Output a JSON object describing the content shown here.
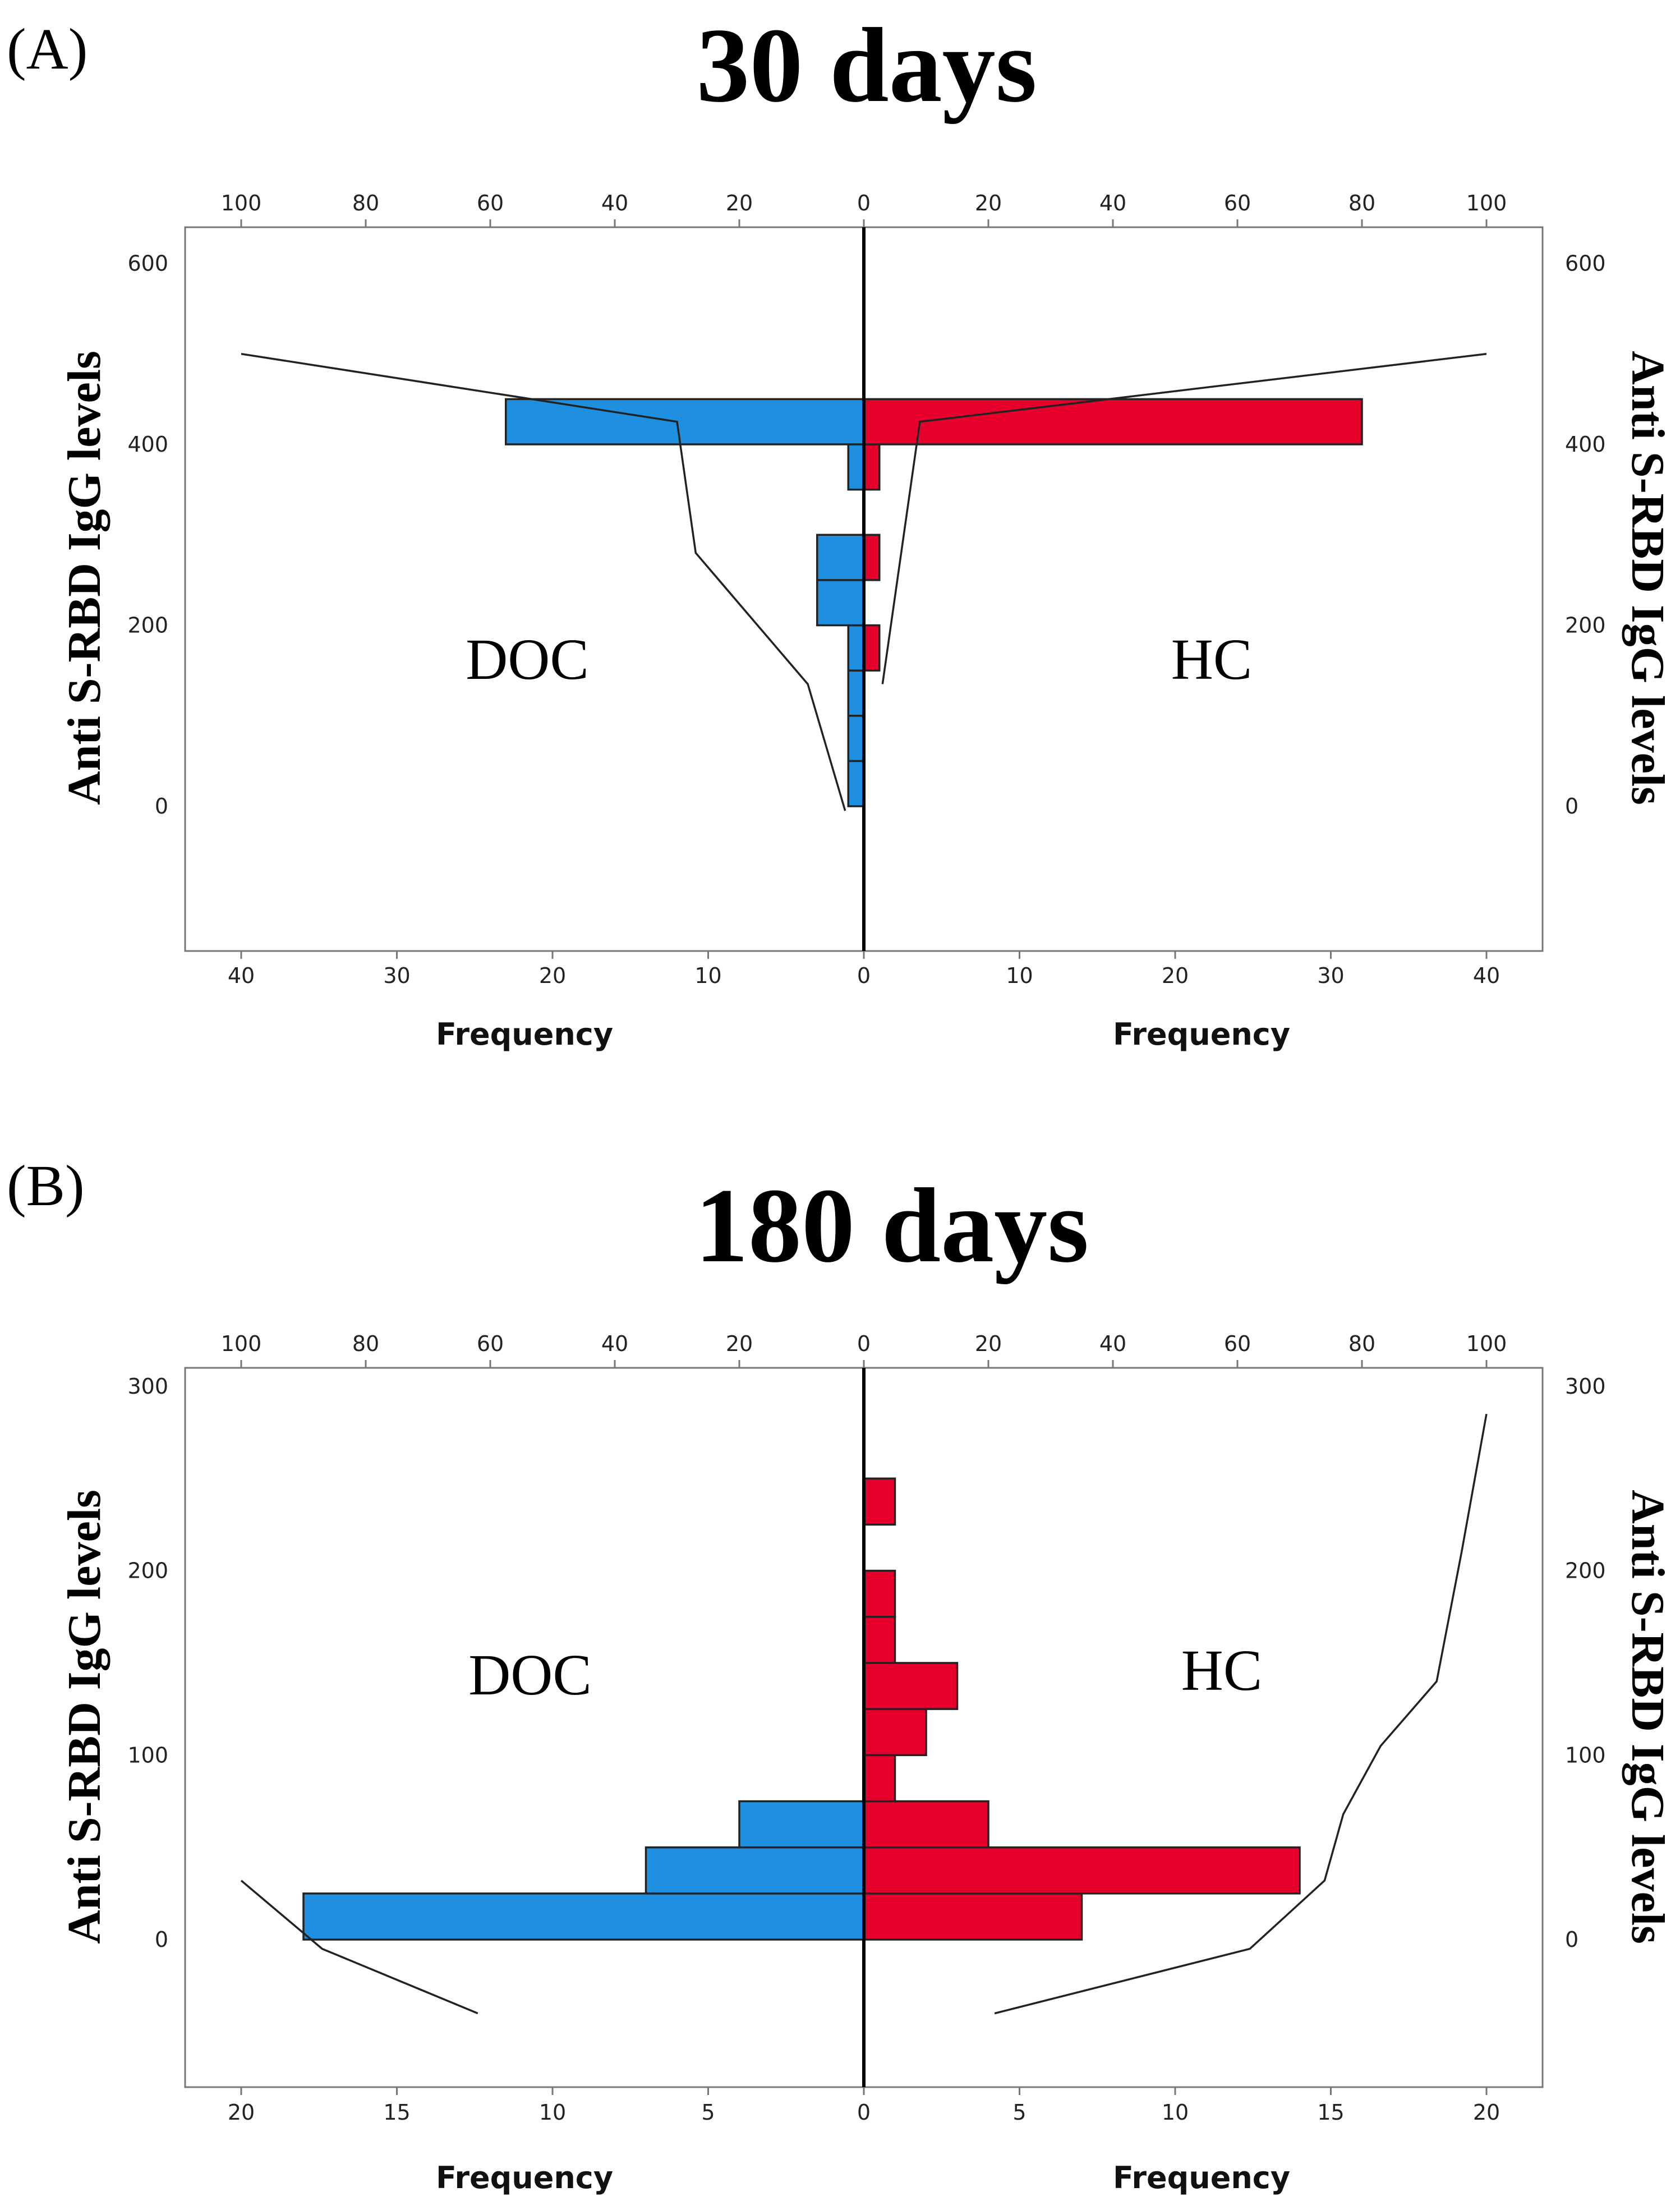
{
  "colors": {
    "DOC": "#1f8fe0",
    "HC": "#e8002d"
  },
  "chart_data": [
    {
      "type": "bar",
      "panel_label": "(A)",
      "title": "30 days",
      "subtype": "back-to-back histogram with cumulative percent curve",
      "ylabel_left": "Anti S-RBD IgG levels",
      "ylabel_right": "Anti S-RBD IgG levels",
      "xlabel_left": "Frequency",
      "xlabel_right": "Frequency",
      "ylim": [
        -160,
        640
      ],
      "y_ticks": [
        0,
        200,
        400,
        600
      ],
      "freq_max": 40,
      "freq_ticks": [
        40,
        30,
        20,
        10,
        0,
        10,
        20,
        30,
        40
      ],
      "percent_ticks": [
        100,
        80,
        60,
        40,
        20,
        0,
        20,
        40,
        60,
        80,
        100
      ],
      "group_labels": {
        "left": "DOC",
        "right": "HC"
      },
      "bin_width": 50,
      "series": [
        {
          "name": "DOC",
          "side": "left",
          "bins": [
            {
              "from": 0,
              "to": 50,
              "frequency": 1
            },
            {
              "from": 50,
              "to": 100,
              "frequency": 1
            },
            {
              "from": 100,
              "to": 150,
              "frequency": 1
            },
            {
              "from": 150,
              "to": 200,
              "frequency": 1
            },
            {
              "from": 200,
              "to": 250,
              "frequency": 3
            },
            {
              "from": 250,
              "to": 300,
              "frequency": 3
            },
            {
              "from": 350,
              "to": 400,
              "frequency": 1
            },
            {
              "from": 400,
              "to": 450,
              "frequency": 23
            }
          ],
          "cumulative_percent": [
            {
              "y": -5,
              "percent": 3
            },
            {
              "y": 135,
              "percent": 9
            },
            {
              "y": 280,
              "percent": 27
            },
            {
              "y": 425,
              "percent": 30
            },
            {
              "y": 500,
              "percent": 100
            }
          ]
        },
        {
          "name": "HC",
          "side": "right",
          "bins": [
            {
              "from": 150,
              "to": 200,
              "frequency": 1
            },
            {
              "from": 250,
              "to": 300,
              "frequency": 1
            },
            {
              "from": 350,
              "to": 400,
              "frequency": 1
            },
            {
              "from": 400,
              "to": 450,
              "frequency": 32
            }
          ],
          "cumulative_percent": [
            {
              "y": 135,
              "percent": 3
            },
            {
              "y": 425,
              "percent": 9
            },
            {
              "y": 500,
              "percent": 100
            }
          ]
        }
      ]
    },
    {
      "type": "bar",
      "panel_label": "(B)",
      "title": "180 days",
      "subtype": "back-to-back histogram with cumulative percent curve",
      "ylabel_left": "Anti S-RBD IgG levels",
      "ylabel_right": "Anti S-RBD IgG levels",
      "xlabel_left": "Frequency",
      "xlabel_right": "Frequency",
      "ylim": [
        -80,
        310
      ],
      "y_ticks": [
        0,
        100,
        200,
        300
      ],
      "freq_max": 20,
      "freq_ticks": [
        20,
        15,
        10,
        5,
        0,
        5,
        10,
        15,
        20
      ],
      "percent_ticks": [
        100,
        80,
        60,
        40,
        20,
        0,
        20,
        40,
        60,
        80,
        100
      ],
      "group_labels": {
        "left": "DOC",
        "right": "HC"
      },
      "bin_width": 25,
      "series": [
        {
          "name": "DOC",
          "side": "left",
          "bins": [
            {
              "from": 0,
              "to": 25,
              "frequency": 18
            },
            {
              "from": 25,
              "to": 50,
              "frequency": 7
            },
            {
              "from": 50,
              "to": 75,
              "frequency": 4
            }
          ],
          "cumulative_percent": [
            {
              "y": -40,
              "percent": 62
            },
            {
              "y": -5,
              "percent": 87
            },
            {
              "y": 32,
              "percent": 100
            }
          ]
        },
        {
          "name": "HC",
          "side": "right",
          "bins": [
            {
              "from": 0,
              "to": 25,
              "frequency": 7
            },
            {
              "from": 25,
              "to": 50,
              "frequency": 14
            },
            {
              "from": 50,
              "to": 75,
              "frequency": 4
            },
            {
              "from": 75,
              "to": 100,
              "frequency": 1
            },
            {
              "from": 100,
              "to": 125,
              "frequency": 2
            },
            {
              "from": 125,
              "to": 150,
              "frequency": 3
            },
            {
              "from": 150,
              "to": 175,
              "frequency": 1
            },
            {
              "from": 175,
              "to": 200,
              "frequency": 1
            },
            {
              "from": 225,
              "to": 250,
              "frequency": 1
            }
          ],
          "cumulative_percent": [
            {
              "y": -40,
              "percent": 21
            },
            {
              "y": -5,
              "percent": 62
            },
            {
              "y": 32,
              "percent": 74
            },
            {
              "y": 68,
              "percent": 77
            },
            {
              "y": 105,
              "percent": 83
            },
            {
              "y": 140,
              "percent": 92
            },
            {
              "y": 210,
              "percent": 96
            },
            {
              "y": 285,
              "percent": 100
            }
          ]
        }
      ]
    }
  ]
}
